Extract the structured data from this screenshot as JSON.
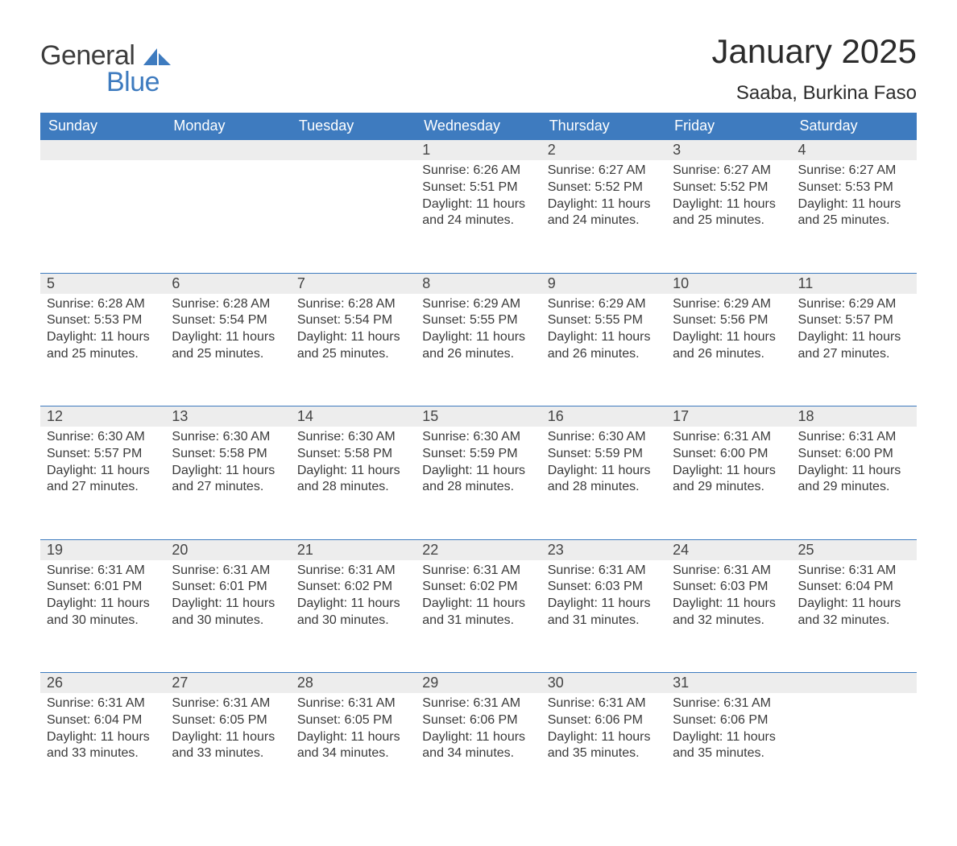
{
  "logo": {
    "word1": "General",
    "word2": "Blue"
  },
  "title": "January 2025",
  "location": "Saaba, Burkina Faso",
  "colors": {
    "header_bg": "#3e7bbf",
    "header_text": "#ffffff",
    "daynum_bg": "#ededed",
    "row_border": "#3e7bbf",
    "body_text": "#3a3a3a",
    "page_bg": "#ffffff"
  },
  "weekdays": [
    "Sunday",
    "Monday",
    "Tuesday",
    "Wednesday",
    "Thursday",
    "Friday",
    "Saturday"
  ],
  "weeks": [
    {
      "days": [
        {
          "num": "",
          "sunrise": "",
          "sunset": "",
          "daylight1": "",
          "daylight2": ""
        },
        {
          "num": "",
          "sunrise": "",
          "sunset": "",
          "daylight1": "",
          "daylight2": ""
        },
        {
          "num": "",
          "sunrise": "",
          "sunset": "",
          "daylight1": "",
          "daylight2": ""
        },
        {
          "num": "1",
          "sunrise": "Sunrise: 6:26 AM",
          "sunset": "Sunset: 5:51 PM",
          "daylight1": "Daylight: 11 hours",
          "daylight2": "and 24 minutes."
        },
        {
          "num": "2",
          "sunrise": "Sunrise: 6:27 AM",
          "sunset": "Sunset: 5:52 PM",
          "daylight1": "Daylight: 11 hours",
          "daylight2": "and 24 minutes."
        },
        {
          "num": "3",
          "sunrise": "Sunrise: 6:27 AM",
          "sunset": "Sunset: 5:52 PM",
          "daylight1": "Daylight: 11 hours",
          "daylight2": "and 25 minutes."
        },
        {
          "num": "4",
          "sunrise": "Sunrise: 6:27 AM",
          "sunset": "Sunset: 5:53 PM",
          "daylight1": "Daylight: 11 hours",
          "daylight2": "and 25 minutes."
        }
      ]
    },
    {
      "days": [
        {
          "num": "5",
          "sunrise": "Sunrise: 6:28 AM",
          "sunset": "Sunset: 5:53 PM",
          "daylight1": "Daylight: 11 hours",
          "daylight2": "and 25 minutes."
        },
        {
          "num": "6",
          "sunrise": "Sunrise: 6:28 AM",
          "sunset": "Sunset: 5:54 PM",
          "daylight1": "Daylight: 11 hours",
          "daylight2": "and 25 minutes."
        },
        {
          "num": "7",
          "sunrise": "Sunrise: 6:28 AM",
          "sunset": "Sunset: 5:54 PM",
          "daylight1": "Daylight: 11 hours",
          "daylight2": "and 25 minutes."
        },
        {
          "num": "8",
          "sunrise": "Sunrise: 6:29 AM",
          "sunset": "Sunset: 5:55 PM",
          "daylight1": "Daylight: 11 hours",
          "daylight2": "and 26 minutes."
        },
        {
          "num": "9",
          "sunrise": "Sunrise: 6:29 AM",
          "sunset": "Sunset: 5:55 PM",
          "daylight1": "Daylight: 11 hours",
          "daylight2": "and 26 minutes."
        },
        {
          "num": "10",
          "sunrise": "Sunrise: 6:29 AM",
          "sunset": "Sunset: 5:56 PM",
          "daylight1": "Daylight: 11 hours",
          "daylight2": "and 26 minutes."
        },
        {
          "num": "11",
          "sunrise": "Sunrise: 6:29 AM",
          "sunset": "Sunset: 5:57 PM",
          "daylight1": "Daylight: 11 hours",
          "daylight2": "and 27 minutes."
        }
      ]
    },
    {
      "days": [
        {
          "num": "12",
          "sunrise": "Sunrise: 6:30 AM",
          "sunset": "Sunset: 5:57 PM",
          "daylight1": "Daylight: 11 hours",
          "daylight2": "and 27 minutes."
        },
        {
          "num": "13",
          "sunrise": "Sunrise: 6:30 AM",
          "sunset": "Sunset: 5:58 PM",
          "daylight1": "Daylight: 11 hours",
          "daylight2": "and 27 minutes."
        },
        {
          "num": "14",
          "sunrise": "Sunrise: 6:30 AM",
          "sunset": "Sunset: 5:58 PM",
          "daylight1": "Daylight: 11 hours",
          "daylight2": "and 28 minutes."
        },
        {
          "num": "15",
          "sunrise": "Sunrise: 6:30 AM",
          "sunset": "Sunset: 5:59 PM",
          "daylight1": "Daylight: 11 hours",
          "daylight2": "and 28 minutes."
        },
        {
          "num": "16",
          "sunrise": "Sunrise: 6:30 AM",
          "sunset": "Sunset: 5:59 PM",
          "daylight1": "Daylight: 11 hours",
          "daylight2": "and 28 minutes."
        },
        {
          "num": "17",
          "sunrise": "Sunrise: 6:31 AM",
          "sunset": "Sunset: 6:00 PM",
          "daylight1": "Daylight: 11 hours",
          "daylight2": "and 29 minutes."
        },
        {
          "num": "18",
          "sunrise": "Sunrise: 6:31 AM",
          "sunset": "Sunset: 6:00 PM",
          "daylight1": "Daylight: 11 hours",
          "daylight2": "and 29 minutes."
        }
      ]
    },
    {
      "days": [
        {
          "num": "19",
          "sunrise": "Sunrise: 6:31 AM",
          "sunset": "Sunset: 6:01 PM",
          "daylight1": "Daylight: 11 hours",
          "daylight2": "and 30 minutes."
        },
        {
          "num": "20",
          "sunrise": "Sunrise: 6:31 AM",
          "sunset": "Sunset: 6:01 PM",
          "daylight1": "Daylight: 11 hours",
          "daylight2": "and 30 minutes."
        },
        {
          "num": "21",
          "sunrise": "Sunrise: 6:31 AM",
          "sunset": "Sunset: 6:02 PM",
          "daylight1": "Daylight: 11 hours",
          "daylight2": "and 30 minutes."
        },
        {
          "num": "22",
          "sunrise": "Sunrise: 6:31 AM",
          "sunset": "Sunset: 6:02 PM",
          "daylight1": "Daylight: 11 hours",
          "daylight2": "and 31 minutes."
        },
        {
          "num": "23",
          "sunrise": "Sunrise: 6:31 AM",
          "sunset": "Sunset: 6:03 PM",
          "daylight1": "Daylight: 11 hours",
          "daylight2": "and 31 minutes."
        },
        {
          "num": "24",
          "sunrise": "Sunrise: 6:31 AM",
          "sunset": "Sunset: 6:03 PM",
          "daylight1": "Daylight: 11 hours",
          "daylight2": "and 32 minutes."
        },
        {
          "num": "25",
          "sunrise": "Sunrise: 6:31 AM",
          "sunset": "Sunset: 6:04 PM",
          "daylight1": "Daylight: 11 hours",
          "daylight2": "and 32 minutes."
        }
      ]
    },
    {
      "days": [
        {
          "num": "26",
          "sunrise": "Sunrise: 6:31 AM",
          "sunset": "Sunset: 6:04 PM",
          "daylight1": "Daylight: 11 hours",
          "daylight2": "and 33 minutes."
        },
        {
          "num": "27",
          "sunrise": "Sunrise: 6:31 AM",
          "sunset": "Sunset: 6:05 PM",
          "daylight1": "Daylight: 11 hours",
          "daylight2": "and 33 minutes."
        },
        {
          "num": "28",
          "sunrise": "Sunrise: 6:31 AM",
          "sunset": "Sunset: 6:05 PM",
          "daylight1": "Daylight: 11 hours",
          "daylight2": "and 34 minutes."
        },
        {
          "num": "29",
          "sunrise": "Sunrise: 6:31 AM",
          "sunset": "Sunset: 6:06 PM",
          "daylight1": "Daylight: 11 hours",
          "daylight2": "and 34 minutes."
        },
        {
          "num": "30",
          "sunrise": "Sunrise: 6:31 AM",
          "sunset": "Sunset: 6:06 PM",
          "daylight1": "Daylight: 11 hours",
          "daylight2": "and 35 minutes."
        },
        {
          "num": "31",
          "sunrise": "Sunrise: 6:31 AM",
          "sunset": "Sunset: 6:06 PM",
          "daylight1": "Daylight: 11 hours",
          "daylight2": "and 35 minutes."
        },
        {
          "num": "",
          "sunrise": "",
          "sunset": "",
          "daylight1": "",
          "daylight2": ""
        }
      ]
    }
  ]
}
